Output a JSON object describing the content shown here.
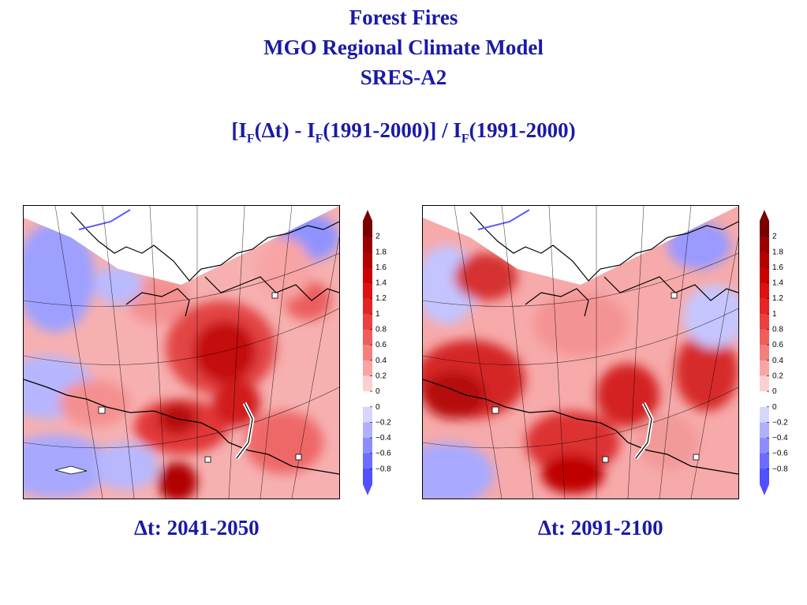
{
  "title_lines": [
    "Forest Fires",
    "MGO Regional Climate Model",
    "SRES-A2"
  ],
  "formula": {
    "open": "[I",
    "sub1": "F",
    "mid1": "(Δt) - I",
    "sub2": "F",
    "mid2": "(1991-2000)] / I",
    "sub3": "F",
    "end": "(1991-2000)"
  },
  "colorbar": {
    "labels": [
      "2",
      "1.8",
      "1.6",
      "1.4",
      "1.2",
      "1",
      "0.8",
      "0.6",
      "0.4",
      "0.2",
      "0",
      "0",
      "−0.2",
      "−0.4",
      "−0.6",
      "−0.8"
    ],
    "colors": [
      "#7a0000",
      "#990000",
      "#b30000",
      "#cc0000",
      "#dd1111",
      "#e52525",
      "#ea4040",
      "#ef5d5d",
      "#f47f7f",
      "#f9a5a5",
      "#fcd0d0",
      "#ffffff",
      "#d6d6ff",
      "#b0b0ff",
      "#8d8dff",
      "#6c6cff",
      "#5050ff"
    ]
  },
  "maps": [
    {
      "period_label": "Δt: 2041-2050"
    },
    {
      "period_label": "Δt: 2091-2100"
    }
  ]
}
